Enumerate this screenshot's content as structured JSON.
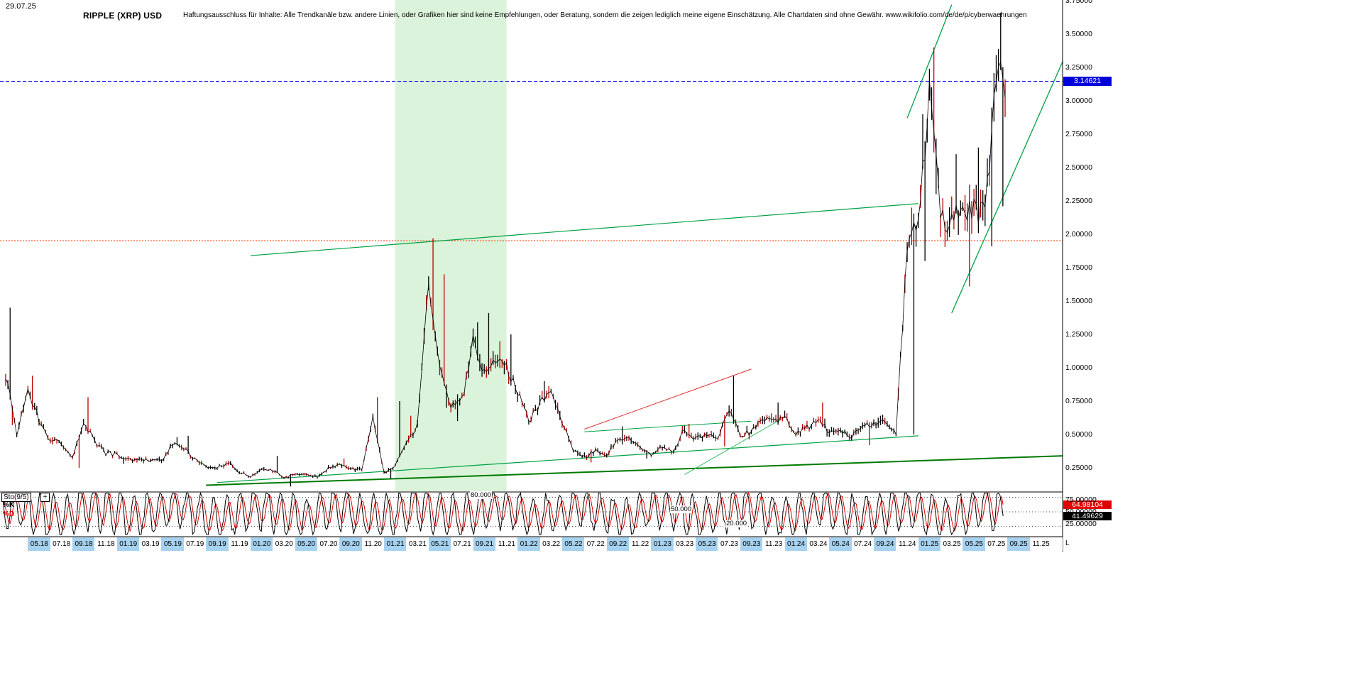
{
  "header": {
    "date": "29.07.25",
    "title": "RIPPLE (XRP) USD",
    "disclaimer": "Haftungsausschluss für Inhalte: Alle Trendkanäle bzw. andere Linien, oder Grafiken hier sind keine Empfehlungen, oder Beratung, sondern die zeigen lediglich meine eigene Einschätzung. Alle Chartdaten sind ohne Gewähr.  www.wikifolio.com/de/de/p/cyberwaehrungen"
  },
  "price_axis": {
    "labels": [
      "3.75000",
      "3.50000",
      "3.25000",
      "3.00000",
      "2.75000",
      "2.50000",
      "2.25000",
      "2.00000",
      "1.75000",
      "1.50000",
      "1.25000",
      "1.00000",
      "0.75000",
      "0.50000",
      "0.25000"
    ],
    "current_price": "3.14621",
    "badge_color": "#0000dd"
  },
  "time_axis": {
    "labels": [
      "05.18",
      "07.18",
      "09.18",
      "11.18",
      "01.19",
      "03.19",
      "05.19",
      "07.19",
      "09.19",
      "11.19",
      "01.20",
      "03.20",
      "05.20",
      "07.20",
      "09.20",
      "11.20",
      "01.21",
      "03.21",
      "05.21",
      "07.21",
      "09.21",
      "11.21",
      "01.22",
      "03.22",
      "05.22",
      "07.22",
      "09.22",
      "11.22",
      "01.23",
      "03.23",
      "05.23",
      "07.23",
      "09.23",
      "11.23",
      "01.24",
      "03.24",
      "05.24",
      "07.24",
      "09.24",
      "11.24",
      "01.25",
      "03.25",
      "05.25",
      "07.25",
      "09.25",
      "11.25"
    ],
    "corner_label": "L",
    "highlight_color": "#a6d2f0"
  },
  "indicator": {
    "name": "Sto(9/5)",
    "expand_icon": "+",
    "k_label": "%K",
    "d_label": "%D",
    "k_value": "41.49629",
    "d_value": "64.98104",
    "axis_labels": [
      "75.00000",
      "50.00000",
      "25.00000"
    ],
    "level_labels": [
      "80.000",
      "50.000",
      "20.000"
    ]
  },
  "chart_data": {
    "type": "candlestick",
    "title": "RIPPLE (XRP) USD",
    "x_unit": "month (m=YYYY-MM), c=close, h=high, l=low (USD)",
    "ylim": [
      0.05,
      3.8
    ],
    "y_ticks": [
      0.25,
      0.5,
      0.75,
      1.0,
      1.25,
      1.5,
      1.75,
      2.0,
      2.25,
      2.5,
      2.75,
      3.0,
      3.25,
      3.5,
      3.75
    ],
    "series": [
      {
        "m": "2018-02",
        "c": 0.95,
        "h": 1.45,
        "l": 0.57
      },
      {
        "m": "2018-03",
        "c": 0.51
      },
      {
        "m": "2018-04",
        "c": 0.83,
        "h": 0.94
      },
      {
        "m": "2018-05",
        "c": 0.61
      },
      {
        "m": "2018-06",
        "c": 0.46
      },
      {
        "m": "2018-07",
        "c": 0.43
      },
      {
        "m": "2018-08",
        "c": 0.34,
        "l": 0.25
      },
      {
        "m": "2018-09",
        "c": 0.58,
        "h": 0.78
      },
      {
        "m": "2018-10",
        "c": 0.45
      },
      {
        "m": "2018-11",
        "c": 0.36
      },
      {
        "m": "2018-12",
        "c": 0.35,
        "l": 0.28
      },
      {
        "m": "2019-01",
        "c": 0.31
      },
      {
        "m": "2019-02",
        "c": 0.31
      },
      {
        "m": "2019-03",
        "c": 0.31
      },
      {
        "m": "2019-04",
        "c": 0.3
      },
      {
        "m": "2019-05",
        "c": 0.43,
        "h": 0.48
      },
      {
        "m": "2019-06",
        "c": 0.4,
        "h": 0.49
      },
      {
        "m": "2019-07",
        "c": 0.31
      },
      {
        "m": "2019-08",
        "c": 0.26
      },
      {
        "m": "2019-09",
        "c": 0.25
      },
      {
        "m": "2019-10",
        "c": 0.29
      },
      {
        "m": "2019-11",
        "c": 0.22
      },
      {
        "m": "2019-12",
        "c": 0.19
      },
      {
        "m": "2020-01",
        "c": 0.24
      },
      {
        "m": "2020-02",
        "c": 0.23,
        "h": 0.34
      },
      {
        "m": "2020-03",
        "c": 0.17,
        "l": 0.11
      },
      {
        "m": "2020-04",
        "c": 0.21
      },
      {
        "m": "2020-05",
        "c": 0.2
      },
      {
        "m": "2020-06",
        "c": 0.18
      },
      {
        "m": "2020-07",
        "c": 0.25
      },
      {
        "m": "2020-08",
        "c": 0.27,
        "h": 0.32
      },
      {
        "m": "2020-09",
        "c": 0.24
      },
      {
        "m": "2020-10",
        "c": 0.24
      },
      {
        "m": "2020-11",
        "c": 0.62,
        "h": 0.78
      },
      {
        "m": "2020-12",
        "c": 0.21,
        "l": 0.17
      },
      {
        "m": "2021-01",
        "c": 0.27,
        "h": 0.75
      },
      {
        "m": "2021-02",
        "c": 0.42,
        "h": 0.64
      },
      {
        "m": "2021-03",
        "c": 0.57
      },
      {
        "m": "2021-04",
        "c": 1.6,
        "h": 1.97
      },
      {
        "m": "2021-05",
        "c": 1.0,
        "h": 1.7,
        "l": 0.7
      },
      {
        "m": "2021-06",
        "c": 0.7,
        "l": 0.6
      },
      {
        "m": "2021-07",
        "c": 0.75
      },
      {
        "m": "2021-08",
        "c": 1.19,
        "h": 1.34
      },
      {
        "m": "2021-09",
        "c": 0.95,
        "h": 1.41
      },
      {
        "m": "2021-10",
        "c": 1.07,
        "h": 1.2
      },
      {
        "m": "2021-11",
        "c": 1.0,
        "h": 1.25
      },
      {
        "m": "2021-12",
        "c": 0.83
      },
      {
        "m": "2022-01",
        "c": 0.6
      },
      {
        "m": "2022-02",
        "c": 0.73,
        "h": 0.9
      },
      {
        "m": "2022-03",
        "c": 0.82
      },
      {
        "m": "2022-04",
        "c": 0.6
      },
      {
        "m": "2022-05",
        "c": 0.39,
        "l": 0.36
      },
      {
        "m": "2022-06",
        "c": 0.33,
        "l": 0.29
      },
      {
        "m": "2022-07",
        "c": 0.38
      },
      {
        "m": "2022-08",
        "c": 0.33
      },
      {
        "m": "2022-09",
        "c": 0.48,
        "h": 0.56
      },
      {
        "m": "2022-10",
        "c": 0.46
      },
      {
        "m": "2022-11",
        "c": 0.4,
        "l": 0.32
      },
      {
        "m": "2022-12",
        "c": 0.34
      },
      {
        "m": "2023-01",
        "c": 0.41
      },
      {
        "m": "2023-02",
        "c": 0.38
      },
      {
        "m": "2023-03",
        "c": 0.54,
        "h": 0.58
      },
      {
        "m": "2023-04",
        "c": 0.47
      },
      {
        "m": "2023-05",
        "c": 0.51
      },
      {
        "m": "2023-06",
        "c": 0.48,
        "l": 0.41
      },
      {
        "m": "2023-07",
        "c": 0.7,
        "h": 0.94
      },
      {
        "m": "2023-08",
        "c": 0.5
      },
      {
        "m": "2023-09",
        "c": 0.52
      },
      {
        "m": "2023-10",
        "c": 0.61
      },
      {
        "m": "2023-11",
        "c": 0.61,
        "h": 0.74
      },
      {
        "m": "2023-12",
        "c": 0.62
      },
      {
        "m": "2024-01",
        "c": 0.5
      },
      {
        "m": "2024-02",
        "c": 0.55
      },
      {
        "m": "2024-03",
        "c": 0.63,
        "h": 0.74
      },
      {
        "m": "2024-04",
        "c": 0.51
      },
      {
        "m": "2024-05",
        "c": 0.52
      },
      {
        "m": "2024-06",
        "c": 0.48
      },
      {
        "m": "2024-07",
        "c": 0.58,
        "l": 0.42
      },
      {
        "m": "2024-08",
        "c": 0.57
      },
      {
        "m": "2024-09",
        "c": 0.62
      },
      {
        "m": "2024-10",
        "c": 0.51
      },
      {
        "m": "2024-11",
        "c": 1.9,
        "h": 2.2,
        "l": 0.5
      },
      {
        "m": "2024-12",
        "c": 2.08,
        "h": 2.9,
        "l": 1.8
      },
      {
        "m": "2025-01",
        "c": 3.04,
        "h": 3.4,
        "l": 2.3
      },
      {
        "m": "2025-02",
        "c": 2.14,
        "l": 1.95
      },
      {
        "m": "2025-03",
        "c": 2.08,
        "h": 2.6
      },
      {
        "m": "2025-04",
        "c": 2.2,
        "l": 1.61
      },
      {
        "m": "2025-05",
        "c": 2.17,
        "h": 2.65
      },
      {
        "m": "2025-06",
        "c": 2.19,
        "l": 1.91
      },
      {
        "m": "2025-07",
        "c": 3.15,
        "h": 3.66,
        "l": 2.21
      },
      {
        "m": "2025-08",
        "c": 3.15
      }
    ],
    "highlight_band": {
      "from": "2021-01",
      "to": "2021-11",
      "color": "rgba(150,220,150,0.35)"
    },
    "hlines": [
      {
        "price": 3.14621,
        "color": "#0000ee",
        "dash": "5 3",
        "meaning": "current price"
      },
      {
        "price": 1.952,
        "color": "#ff3300",
        "dash": "2 2",
        "meaning": "horizontal resistance"
      }
    ],
    "trendlines": [
      {
        "a": "2019-12",
        "pa": 1.84,
        "b": "2024-12",
        "pb": 2.23,
        "color": "#00a143",
        "w": 1.2
      },
      {
        "a": "2019-08",
        "pa": 0.12,
        "b": "2026-01",
        "pb": 0.34,
        "color": "#007a00",
        "w": 2
      },
      {
        "a": "2019-09",
        "pa": 0.14,
        "b": "2024-12",
        "pb": 0.49,
        "color": "#00a143",
        "w": 1.2
      },
      {
        "a": "2022-06",
        "pa": 0.54,
        "b": "2023-09",
        "pb": 0.99,
        "color": "#e03030",
        "w": 1
      },
      {
        "a": "2022-06",
        "pa": 0.52,
        "b": "2023-09",
        "pb": 0.6,
        "color": "#00a143",
        "w": 1
      },
      {
        "a": "2023-03",
        "pa": 0.2,
        "b": "2023-12",
        "pb": 0.63,
        "color": "#2fbf5f",
        "w": 1
      },
      {
        "a": "2024-11",
        "pa": 2.87,
        "b": "2025-03",
        "pb": 3.72,
        "color": "#00a143",
        "w": 1.3
      },
      {
        "a": "2025-03",
        "pa": 1.41,
        "b": "2026-01",
        "pb": 3.3,
        "color": "#00a143",
        "w": 1.3
      }
    ],
    "stochastic": {
      "name": "Sto(9/5)",
      "k_current": 41.49629,
      "d_current": 64.98104,
      "levels": [
        80,
        50,
        20
      ],
      "axis_ticks": [
        75,
        50,
        25
      ]
    }
  }
}
